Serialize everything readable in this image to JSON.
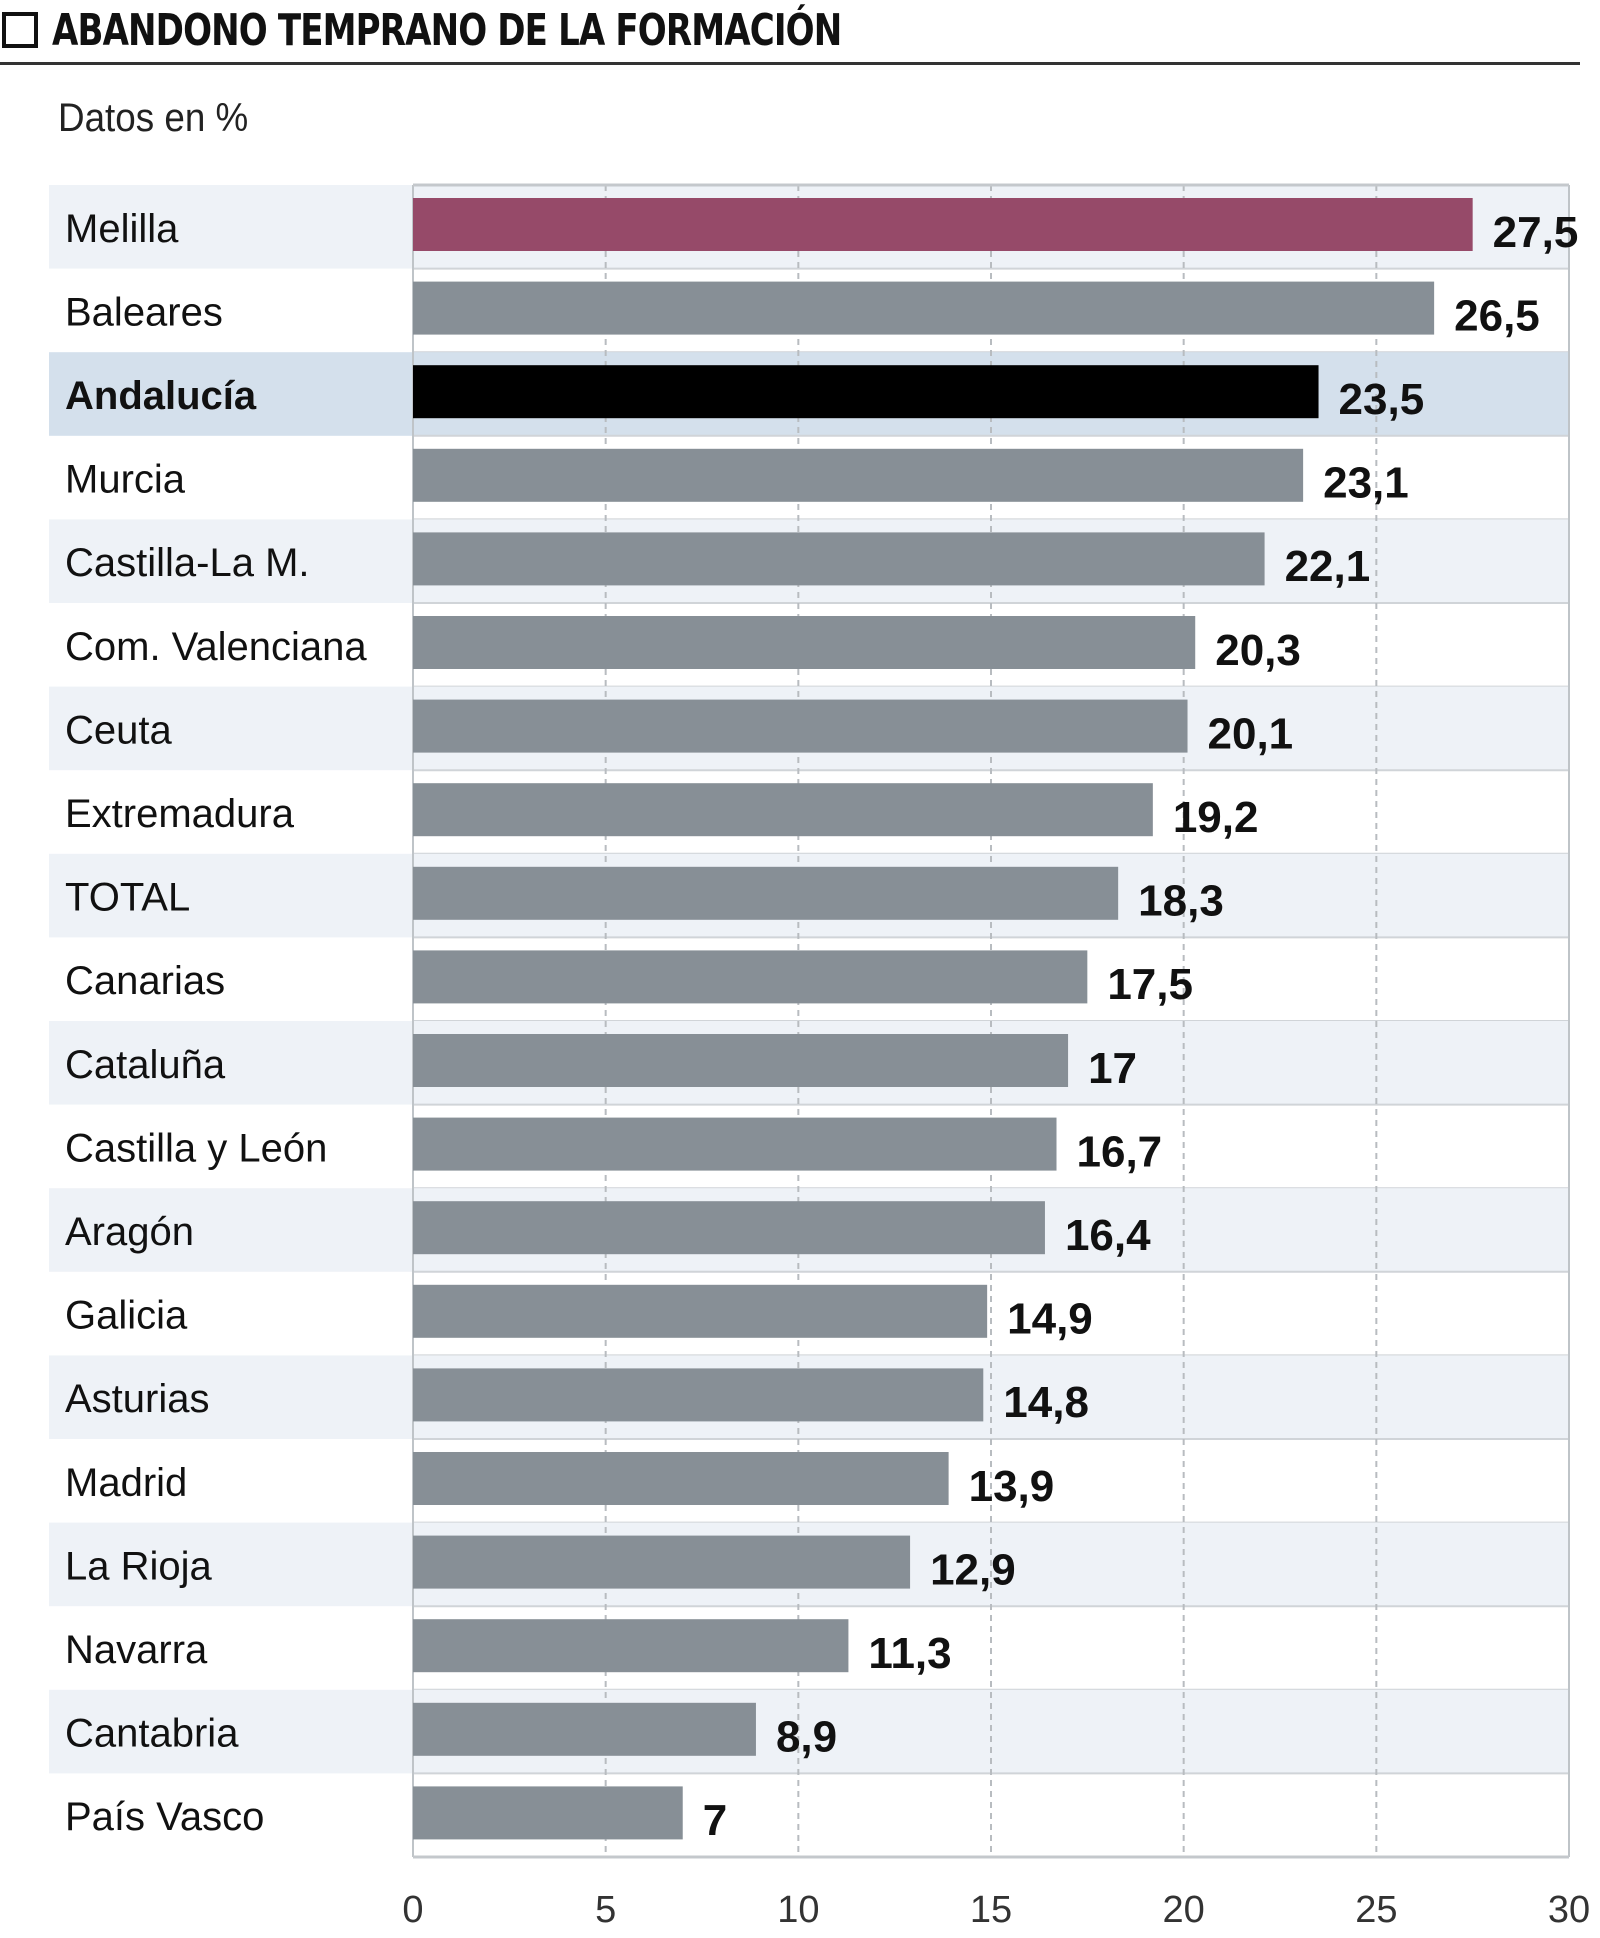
{
  "title": "ABANDONO TEMPRANO DE LA FORMACIÓN",
  "subtitle": "Datos en %",
  "chart_data": {
    "type": "bar",
    "orientation": "horizontal",
    "title": "ABANDONO TEMPRANO DE LA FORMACIÓN",
    "subtitle": "Datos en %",
    "categories": [
      "Melilla",
      "Baleares",
      "Andalucía",
      "Murcia",
      "Castilla-La M.",
      "Com. Valenciana",
      "Ceuta",
      "Extremadura",
      "TOTAL",
      "Canarias",
      "Cataluña",
      "Castilla y León",
      "Aragón",
      "Galicia",
      "Asturias",
      "Madrid",
      "La Rioja",
      "Navarra",
      "Cantabria",
      "País Vasco"
    ],
    "values": [
      27.5,
      26.5,
      23.5,
      23.1,
      22.1,
      20.3,
      20.1,
      19.2,
      18.3,
      17.5,
      17,
      16.7,
      16.4,
      14.9,
      14.8,
      13.9,
      12.9,
      11.3,
      8.9,
      7
    ],
    "value_labels": [
      "27,5",
      "26,5",
      "23,5",
      "23,1",
      "22,1",
      "20,3",
      "20,1",
      "19,2",
      "18,3",
      "17,5",
      "17",
      "16,7",
      "16,4",
      "14,9",
      "14,8",
      "13,9",
      "12,9",
      "11,3",
      "8,9",
      "7"
    ],
    "xlim": [
      0,
      30
    ],
    "xticks": [
      "0",
      "5",
      "10",
      "15",
      "20",
      "25",
      "30"
    ],
    "grid": true,
    "highlight": {
      "Melilla": "#964a69",
      "Andalucía": "#000000"
    },
    "colors": {
      "default_bar": "#878f96",
      "row_band": "#eef2f7",
      "highlight_band": "#d4e0ec"
    }
  }
}
